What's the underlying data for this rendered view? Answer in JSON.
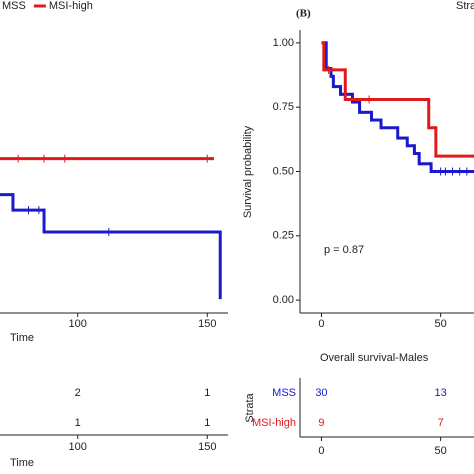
{
  "chart_data": [
    {
      "type": "step",
      "legend_position": "top-left",
      "xlabel": "Time",
      "xlim": [
        70,
        158
      ],
      "ylim": [
        -0.05,
        1.05
      ],
      "xticks": [
        100,
        150
      ],
      "series": [
        {
          "name": "MSS",
          "color": "#1a1acc",
          "x": [
            70,
            75,
            87,
            155
          ],
          "values": [
            0.41,
            0.35,
            0.265,
            0.01
          ],
          "censored": [
            81,
            85,
            112
          ]
        },
        {
          "name": "MSI-high",
          "color": "#e01a1a",
          "x": [
            70,
            152
          ],
          "values": [
            0.55,
            0.55
          ],
          "censored": [
            77,
            87,
            95,
            150
          ]
        }
      ],
      "risk_table": {
        "times": [
          100,
          150
        ],
        "xticks": [
          100,
          150
        ],
        "xlabel": "Time",
        "rows": [
          {
            "color": "#222",
            "counts": [
              2,
              1
            ]
          },
          {
            "color": "#222",
            "counts": [
              1,
              1
            ]
          }
        ]
      }
    },
    {
      "type": "step",
      "panel_label": "(B)",
      "legend_title": "Stra",
      "ylabel": "Survival probability",
      "annotation": "p = 0.87",
      "xlim": [
        -9,
        64
      ],
      "ylim": [
        -0.05,
        1.05
      ],
      "xticks": [
        0,
        50
      ],
      "yticks": [
        {
          "value": 0,
          "label": "0.00"
        },
        {
          "value": 0.25,
          "label": "0.25"
        },
        {
          "value": 0.5,
          "label": "0.50"
        },
        {
          "value": 0.75,
          "label": "0.75"
        },
        {
          "value": 1,
          "label": "1.00"
        }
      ],
      "series": [
        {
          "color": "#1a1acc",
          "x": [
            0,
            2,
            4,
            5,
            8,
            13,
            16,
            21,
            25,
            32,
            36,
            39,
            41,
            46,
            64
          ],
          "values": [
            1,
            0.9,
            0.87,
            0.83,
            0.8,
            0.77,
            0.73,
            0.7,
            0.67,
            0.63,
            0.6,
            0.57,
            0.53,
            0.5,
            0.5
          ],
          "censored": [
            50,
            52,
            55,
            58,
            61
          ]
        },
        {
          "color": "#e01a1a",
          "x": [
            0,
            1,
            10,
            45,
            48,
            64
          ],
          "values": [
            1,
            0.895,
            0.78,
            0.67,
            0.56,
            0.56
          ],
          "censored": [
            3,
            20
          ]
        }
      ],
      "risk_table": {
        "title": "Overall survival-Males",
        "strata_label": "Strata",
        "times": [
          0,
          50
        ],
        "xticks": [
          0,
          50
        ],
        "rows": [
          {
            "name": "MSS",
            "color": "#1a1acc",
            "counts": [
              30,
              13
            ]
          },
          {
            "name": "MSI-high",
            "color": "#e01a1a",
            "counts": [
              9,
              7
            ]
          }
        ]
      }
    }
  ]
}
